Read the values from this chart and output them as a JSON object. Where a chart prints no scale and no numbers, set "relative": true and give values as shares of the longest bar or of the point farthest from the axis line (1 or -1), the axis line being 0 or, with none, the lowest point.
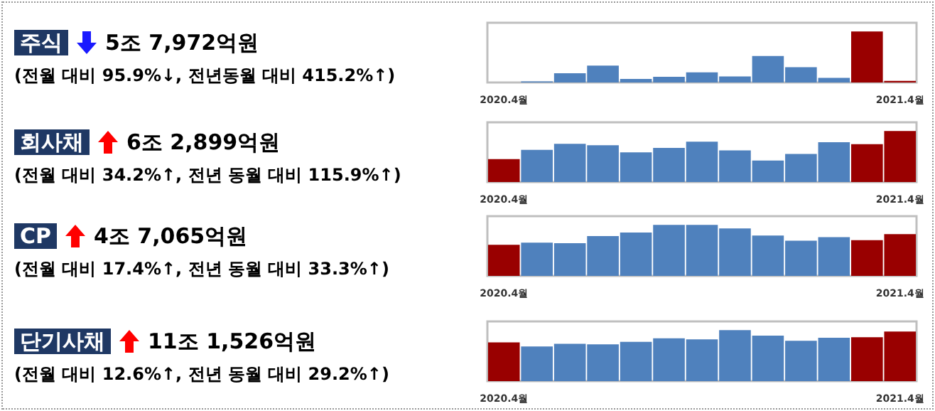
{
  "chart_data": [
    {
      "type": "bar",
      "relative": true,
      "annotations": [
        "주식",
        "5조 7,972억원",
        "(전월 대비 95.9%↓, 전년동월 대비 415.2%↑)"
      ],
      "categories": [
        "2020.4월",
        null,
        null,
        null,
        null,
        null,
        null,
        null,
        null,
        null,
        null,
        null,
        "2021.4월"
      ],
      "values": [
        0,
        0.02,
        0.18,
        0.33,
        0.07,
        0.11,
        0.2,
        0.12,
        0.52,
        0.3,
        0.09,
        1,
        0.03
      ],
      "colors": [
        "#990000",
        "#4f81bd",
        "#4f81bd",
        "#4f81bd",
        "#4f81bd",
        "#4f81bd",
        "#4f81bd",
        "#4f81bd",
        "#4f81bd",
        "#4f81bd",
        "#4f81bd",
        "#990000",
        "#990000"
      ]
    },
    {
      "type": "bar",
      "relative": true,
      "annotations": [
        "회사채",
        "6조 2,899억원",
        "(전월 대비 34.2%↑, 전년 동월 대비 115.9%↑)"
      ],
      "categories": [
        "2020.4월",
        null,
        null,
        null,
        null,
        null,
        null,
        null,
        null,
        null,
        null,
        null,
        "2021.4월"
      ],
      "values": [
        0.45,
        0.63,
        0.75,
        0.72,
        0.58,
        0.67,
        0.79,
        0.62,
        0.42,
        0.55,
        0.78,
        0.74,
        1
      ],
      "colors": [
        "#990000",
        "#4f81bd",
        "#4f81bd",
        "#4f81bd",
        "#4f81bd",
        "#4f81bd",
        "#4f81bd",
        "#4f81bd",
        "#4f81bd",
        "#4f81bd",
        "#4f81bd",
        "#990000",
        "#990000"
      ]
    },
    {
      "type": "bar",
      "relative": true,
      "annotations": [
        "CP",
        "4조 7,065억원",
        "(전월 대비 17.4%↑, 전년 동월 대비 33.3%↑)"
      ],
      "categories": [
        "2020.4월",
        null,
        null,
        null,
        null,
        null,
        null,
        null,
        null,
        null,
        null,
        null,
        "2021.4월"
      ],
      "values": [
        0.61,
        0.65,
        0.64,
        0.78,
        0.85,
        1,
        1,
        0.93,
        0.79,
        0.69,
        0.76,
        0.7,
        0.82
      ],
      "colors": [
        "#990000",
        "#4f81bd",
        "#4f81bd",
        "#4f81bd",
        "#4f81bd",
        "#4f81bd",
        "#4f81bd",
        "#4f81bd",
        "#4f81bd",
        "#4f81bd",
        "#4f81bd",
        "#990000",
        "#990000"
      ]
    },
    {
      "type": "bar",
      "relative": true,
      "annotations": [
        "단기사채",
        "11조 1,526억원",
        "(전월 대비 12.6%↑, 전년 동월 대비 29.2%↑)"
      ],
      "categories": [
        "2020.4월",
        null,
        null,
        null,
        null,
        null,
        null,
        null,
        null,
        null,
        null,
        null,
        "2021.4월"
      ],
      "values": [
        0.76,
        0.68,
        0.73,
        0.72,
        0.77,
        0.84,
        0.82,
        1,
        0.89,
        0.79,
        0.85,
        0.86,
        0.97
      ],
      "colors": [
        "#990000",
        "#4f81bd",
        "#4f81bd",
        "#4f81bd",
        "#4f81bd",
        "#4f81bd",
        "#4f81bd",
        "#4f81bd",
        "#4f81bd",
        "#4f81bd",
        "#4f81bd",
        "#990000",
        "#990000"
      ]
    }
  ]
}
